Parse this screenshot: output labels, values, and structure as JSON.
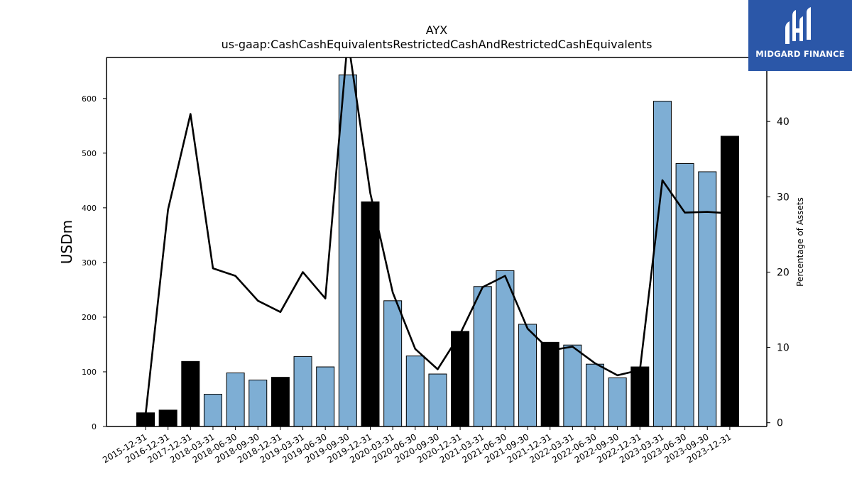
{
  "brand": {
    "name": "MIDGARD FINANCE",
    "bg_color": "#2b57a8",
    "fg_color": "#ffffff"
  },
  "chart_data": {
    "type": "bar",
    "title": "AYX",
    "subtitle": "us-gaap:CashCashEquivalentsRestrictedCashAndRestrictedCashEquivalents",
    "ylabel": "USDm",
    "ylabel_right": "Percentage of Assets",
    "ylim": [
      0,
      675
    ],
    "ylim_right": [
      -0.5,
      48.5
    ],
    "yticks": [
      0,
      100,
      200,
      300,
      400,
      500,
      600
    ],
    "yticks_right": [
      0,
      10,
      20,
      30,
      40
    ],
    "categories": [
      "2015-12-31",
      "2016-12-31",
      "2017-12-31",
      "2018-03-31",
      "2018-06-30",
      "2018-09-30",
      "2018-12-31",
      "2019-03-31",
      "2019-06-30",
      "2019-09-30",
      "2019-12-31",
      "2020-03-31",
      "2020-06-30",
      "2020-09-30",
      "2020-12-31",
      "2021-03-31",
      "2021-06-30",
      "2021-09-30",
      "2021-12-31",
      "2022-03-31",
      "2022-06-30",
      "2022-09-30",
      "2022-12-31",
      "2023-03-31",
      "2023-06-30",
      "2023-09-30",
      "2023-12-31"
    ],
    "series": [
      {
        "type": "bar",
        "values": [
          25,
          30,
          119,
          59,
          98,
          85,
          90,
          128,
          109,
          643,
          411,
          230,
          129,
          96,
          174,
          256,
          285,
          187,
          154,
          149,
          114,
          89,
          109,
          595,
          481,
          466,
          531
        ],
        "annual": [
          true,
          true,
          true,
          false,
          false,
          false,
          true,
          false,
          false,
          false,
          true,
          false,
          false,
          false,
          true,
          false,
          false,
          false,
          true,
          false,
          false,
          false,
          true,
          false,
          false,
          false,
          true
        ]
      },
      {
        "type": "line",
        "axis": "right",
        "values": [
          1.0,
          28.3,
          41.0,
          20.5,
          19.5,
          16.2,
          14.7,
          20.0,
          16.5,
          51.0,
          30.5,
          17.3,
          9.8,
          7.1,
          11.8,
          18.0,
          19.5,
          12.5,
          9.6,
          10.1,
          7.9,
          6.3,
          7.0,
          32.2,
          27.9,
          28.0,
          27.8
        ]
      }
    ],
    "colors": {
      "bar_quarterly": "#7eaed4",
      "bar_annual": "#000000",
      "bar_edge": "#000000",
      "line": "#000000"
    },
    "grid": false,
    "legend": "none"
  }
}
